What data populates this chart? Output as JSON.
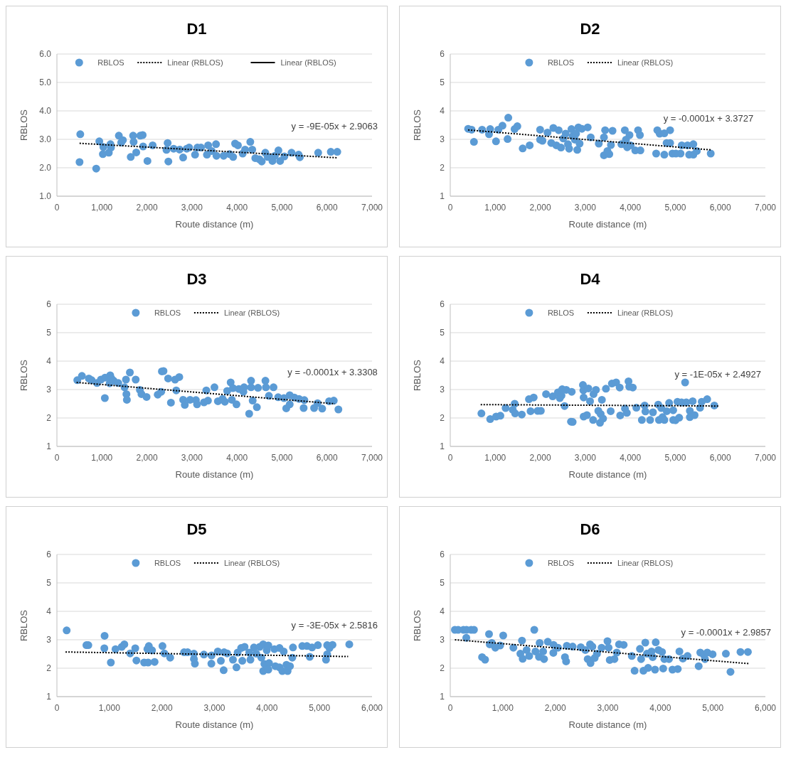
{
  "chart_data": [
    {
      "type": "scatter",
      "title": "D1",
      "xlabel": "Route distance (m)",
      "ylabel": "RBLOS",
      "xlim": [
        0,
        7000
      ],
      "xticks": [
        {
          "value": 0,
          "label": "0"
        },
        {
          "value": 1000,
          "label": "1,000"
        },
        {
          "value": 2000,
          "label": "2,000"
        },
        {
          "value": 3000,
          "label": "3,000"
        },
        {
          "value": 4000,
          "label": "4,000"
        },
        {
          "value": 5000,
          "label": "5,000"
        },
        {
          "value": 6000,
          "label": "6,000"
        },
        {
          "value": 7000,
          "label": "7,000"
        }
      ],
      "ylim": [
        1,
        6
      ],
      "yticks": [
        {
          "value": 1,
          "label": "1.0"
        },
        {
          "value": 2,
          "label": "2.0"
        },
        {
          "value": 3,
          "label": "3.0"
        },
        {
          "value": 4,
          "label": "4.0"
        },
        {
          "value": 5,
          "label": "5.0"
        },
        {
          "value": 6,
          "label": "6.0"
        }
      ],
      "grid": "y",
      "legend": "top",
      "annotations": [
        "y = -9E-05x + 2.9063"
      ],
      "series": [
        {
          "name": "RBLOS",
          "marker": "circle",
          "color": "#5b9bd5",
          "x": [
            503,
            519,
            873,
            942,
            1032,
            1021,
            1153,
            1190,
            1201,
            1376,
            1429,
            1466,
            1640,
            1693,
            1704,
            1762,
            1852,
            1905,
            1915,
            2011,
            2127,
            2460,
            2434,
            2476,
            2593,
            2725,
            2804,
            2884,
            2937,
            3069,
            3122,
            3201,
            3333,
            3360,
            3439,
            3534,
            3545,
            3704,
            3836,
            3915,
            3958,
            4021,
            4127,
            4180,
            4296,
            4339,
            4407,
            4497,
            4550,
            4630,
            4683,
            4788,
            4841,
            4921,
            4958,
            5053,
            5212,
            5370,
            5397,
            5804,
            6085,
            6228
          ],
          "values": [
            2.2,
            3.18,
            1.97,
            2.93,
            2.73,
            2.48,
            2.53,
            2.83,
            2.71,
            3.13,
            2.89,
            2.97,
            2.38,
            3.13,
            2.91,
            2.54,
            3.13,
            3.15,
            2.75,
            2.24,
            2.79,
            2.87,
            2.63,
            2.22,
            2.67,
            2.64,
            2.36,
            2.67,
            2.71,
            2.46,
            2.71,
            2.71,
            2.46,
            2.79,
            2.59,
            2.83,
            2.42,
            2.42,
            2.48,
            2.38,
            2.85,
            2.79,
            2.5,
            2.64,
            2.91,
            2.64,
            2.34,
            2.3,
            2.22,
            2.53,
            2.38,
            2.24,
            2.42,
            2.61,
            2.24,
            2.4,
            2.53,
            2.46,
            2.37,
            2.53,
            2.56,
            2.56
          ]
        },
        {
          "name": "Linear (RBLOS)",
          "type": "line",
          "color": "#000000",
          "line_style": "dotted",
          "x": [
            503,
            6228
          ],
          "values": [
            2.86,
            2.35
          ]
        },
        {
          "name": "Linear (RBLOS)",
          "type": "line",
          "color": "#000000",
          "line_style": "solid",
          "values": [
            null
          ]
        }
      ]
    },
    {
      "type": "scatter",
      "title": "D2",
      "xlabel": "Route distance (m)",
      "ylabel": "RBLOS",
      "xlim": [
        0,
        7000
      ],
      "xticks": [
        {
          "value": 0,
          "label": "0"
        },
        {
          "value": 1000,
          "label": "1,000"
        },
        {
          "value": 2000,
          "label": "2,000"
        },
        {
          "value": 3000,
          "label": "3,000"
        },
        {
          "value": 4000,
          "label": "4,000"
        },
        {
          "value": 5000,
          "label": "5,000"
        },
        {
          "value": 6000,
          "label": "6,000"
        },
        {
          "value": 7000,
          "label": "7,000"
        }
      ],
      "ylim": [
        1,
        6
      ],
      "yticks": [
        1,
        2,
        3,
        4,
        5,
        6
      ],
      "grid": "y",
      "legend": "top",
      "annotations": [
        "y = -0.0001x + 3.3727"
      ],
      "series": [
        {
          "name": "RBLOS",
          "marker": "circle",
          "color": "#5b9bd5",
          "x": [
            397,
            474,
            526,
            707,
            861,
            887,
            1016,
            1068,
            1160,
            1274,
            1289,
            1429,
            1490,
            1609,
            1764,
            1996,
            1996,
            2048,
            2160,
            2243,
            2290,
            2357,
            2408,
            2460,
            2511,
            2563,
            2615,
            2640,
            2692,
            2718,
            2769,
            2795,
            2821,
            2847,
            2873,
            2924,
            3053,
            3120,
            3300,
            3414,
            3414,
            3440,
            3491,
            3533,
            3569,
            3605,
            3801,
            3878,
            3904,
            3930,
            3982,
            4007,
            4110,
            4172,
            4213,
            4224,
            4574,
            4600,
            4652,
            4755,
            4755,
            4806,
            4884,
            4884,
            4935,
            5013,
            5116,
            5142,
            5271,
            5307,
            5400,
            5400,
            5477,
            5786
          ],
          "values": [
            3.37,
            3.34,
            2.91,
            3.34,
            3.18,
            3.36,
            2.93,
            3.34,
            3.48,
            3.01,
            3.76,
            3.36,
            3.46,
            2.68,
            2.79,
            3.34,
            2.99,
            2.95,
            3.24,
            2.87,
            3.4,
            2.79,
            3.32,
            2.71,
            3.03,
            3.2,
            2.83,
            2.67,
            3.36,
            3.11,
            2.99,
            3.2,
            2.63,
            3.42,
            2.85,
            3.37,
            3.42,
            3.07,
            2.85,
            3.07,
            2.44,
            3.32,
            2.59,
            2.48,
            2.8,
            3.3,
            2.83,
            3.32,
            2.99,
            2.72,
            3.15,
            2.79,
            2.61,
            3.32,
            3.15,
            2.61,
            2.5,
            3.32,
            3.2,
            3.21,
            2.46,
            2.87,
            3.32,
            2.87,
            2.5,
            2.5,
            2.5,
            2.79,
            2.79,
            2.46,
            2.83,
            2.46,
            2.59,
            2.5
          ]
        },
        {
          "name": "Linear (RBLOS)",
          "type": "line",
          "color": "#000000",
          "line_style": "dotted",
          "x": [
            397,
            5786
          ],
          "values": [
            3.33,
            2.63
          ]
        }
      ]
    },
    {
      "type": "scatter",
      "title": "D3",
      "xlabel": "Route distance (m)",
      "ylabel": "RBLOS",
      "xlim": [
        0,
        7000
      ],
      "xticks": [
        {
          "value": 0,
          "label": "0"
        },
        {
          "value": 1000,
          "label": "1,000"
        },
        {
          "value": 2000,
          "label": "2,000"
        },
        {
          "value": 3000,
          "label": "3,000"
        },
        {
          "value": 4000,
          "label": "4,000"
        },
        {
          "value": 5000,
          "label": "5,000"
        },
        {
          "value": 6000,
          "label": "6,000"
        },
        {
          "value": 7000,
          "label": "7,000"
        }
      ],
      "ylim": [
        1,
        6
      ],
      "yticks": [
        1,
        2,
        3,
        4,
        5,
        6
      ],
      "grid": "y",
      "legend": "top",
      "annotations": [
        "y = -0.0001x + 3.3308"
      ],
      "series": [
        {
          "name": "RBLOS",
          "marker": "circle",
          "color": "#5b9bd5",
          "x": [
            453,
            556,
            710,
            772,
            890,
            978,
            1070,
            1065,
            1184,
            1210,
            1173,
            1261,
            1364,
            1503,
            1534,
            1544,
            1554,
            1621,
            1750,
            1843,
            1879,
            1992,
            2240,
            2317,
            2332,
            2368,
            2471,
            2533,
            2625,
            2651,
            2718,
            2805,
            2841,
            2959,
            3088,
            3113,
            3268,
            3319,
            3355,
            3500,
            3577,
            3680,
            3731,
            3783,
            3860,
            3886,
            3911,
            3989,
            4040,
            4143,
            4158,
            4271,
            4313,
            4313,
            4349,
            4442,
            4467,
            4632,
            4642,
            4709,
            4812,
            4915,
            5044,
            5095,
            5172,
            5172,
            5275,
            5378,
            5481,
            5497,
            5713,
            5790,
            5893,
            6047,
            6150,
            6253
          ],
          "values": [
            3.33,
            3.48,
            3.39,
            3.33,
            3.23,
            3.35,
            3.42,
            2.7,
            3.5,
            3.39,
            3.22,
            3.31,
            3.23,
            3.08,
            3.35,
            2.84,
            2.64,
            3.6,
            3.35,
            2.99,
            2.84,
            2.74,
            2.82,
            2.92,
            3.64,
            3.65,
            3.39,
            2.54,
            3.35,
            2.97,
            3.44,
            2.64,
            2.46,
            2.64,
            2.63,
            2.48,
            2.55,
            2.97,
            2.61,
            3.08,
            2.59,
            2.67,
            2.57,
            2.95,
            3.25,
            2.64,
            3.05,
            2.48,
            3.02,
            2.92,
            3.08,
            2.15,
            3.31,
            3.08,
            2.61,
            2.38,
            3.06,
            3.31,
            3.08,
            2.78,
            3.08,
            2.73,
            2.7,
            2.34,
            2.8,
            2.48,
            2.72,
            2.67,
            2.35,
            2.63,
            2.35,
            2.52,
            2.33,
            2.59,
            2.61,
            2.3
          ]
        },
        {
          "name": "Linear (RBLOS)",
          "type": "line",
          "color": "#000000",
          "line_style": "dotted",
          "x": [
            437,
            6176
          ],
          "values": [
            3.25,
            2.5
          ]
        }
      ]
    },
    {
      "type": "scatter",
      "title": "D4",
      "xlabel": "Route distance (m)",
      "ylabel": "RBLOS",
      "xlim": [
        0,
        7000
      ],
      "xticks": [
        {
          "value": 0,
          "label": "0"
        },
        {
          "value": 1000,
          "label": "1,000"
        },
        {
          "value": 2000,
          "label": "2,000"
        },
        {
          "value": 3000,
          "label": "3,000"
        },
        {
          "value": 4000,
          "label": "4,000"
        },
        {
          "value": 5000,
          "label": "5,000"
        },
        {
          "value": 6000,
          "label": "6,000"
        },
        {
          "value": 7000,
          "label": "7,000"
        }
      ],
      "ylim": [
        1,
        6
      ],
      "yticks": [
        1,
        2,
        3,
        4,
        5,
        6
      ],
      "grid": "y",
      "legend": "top",
      "annotations": [
        "y = -1E-05x + 2.4927"
      ],
      "series": [
        {
          "name": "RBLOS",
          "marker": "circle",
          "color": "#5b9bd5",
          "x": [
            692,
            887,
            1019,
            1114,
            1230,
            1388,
            1431,
            1441,
            1589,
            1748,
            1784,
            1853,
            1943,
            2012,
            2128,
            2276,
            2392,
            2434,
            2487,
            2471,
            2540,
            2577,
            2682,
            2719,
            2698,
            2947,
            2957,
            2963,
            2963,
            3036,
            3068,
            3105,
            3173,
            3183,
            3236,
            3289,
            3326,
            3342,
            3368,
            3395,
            3458,
            3564,
            3590,
            3685,
            3764,
            3775,
            3881,
            3923,
            3960,
            3976,
            4055,
            4134,
            4256,
            4319,
            4335,
            4440,
            4503,
            4620,
            4636,
            4688,
            4715,
            4757,
            4810,
            4862,
            4952,
            4952,
            5005,
            5048,
            5085,
            5137,
            5217,
            5243,
            5322,
            5322,
            5385,
            5428,
            5549,
            5586,
            5707,
            5866
          ],
          "values": [
            2.16,
            1.96,
            2.05,
            2.08,
            2.35,
            2.29,
            2.5,
            2.16,
            2.12,
            2.66,
            2.24,
            2.72,
            2.25,
            2.25,
            2.84,
            2.76,
            2.9,
            2.7,
            3.01,
            2.79,
            2.42,
            2.99,
            1.87,
            1.86,
            2.92,
            3.16,
            2.97,
            2.72,
            2.05,
            2.1,
            3.04,
            2.59,
            1.93,
            2.84,
            2.99,
            2.25,
            1.83,
            2.14,
            2.64,
            1.98,
            3.03,
            2.24,
            3.21,
            3.25,
            3.07,
            2.09,
            2.33,
            2.18,
            3.29,
            3.1,
            3.07,
            2.36,
            1.93,
            2.44,
            2.23,
            1.93,
            2.2,
            2.47,
            1.93,
            2.35,
            2.03,
            1.93,
            2.24,
            2.53,
            1.93,
            2.27,
            1.92,
            2.57,
            2.01,
            2.55,
            3.25,
            2.55,
            2.25,
            2.03,
            2.59,
            2.1,
            2.36,
            2.57,
            2.66,
            2.44
          ]
        },
        {
          "name": "Linear (RBLOS)",
          "type": "line",
          "color": "#000000",
          "line_style": "dotted",
          "x": [
            676,
            5956
          ],
          "values": [
            2.47,
            2.42
          ]
        }
      ]
    },
    {
      "type": "scatter",
      "title": "D5",
      "xlabel": "Route distance (m)",
      "ylabel": "RBLOS",
      "xlim": [
        0,
        6000
      ],
      "xticks": [
        {
          "value": 0,
          "label": "0"
        },
        {
          "value": 1000,
          "label": "1,000"
        },
        {
          "value": 2000,
          "label": "2,000"
        },
        {
          "value": 3000,
          "label": "3,000"
        },
        {
          "value": 4000,
          "label": "4,000"
        },
        {
          "value": 5000,
          "label": "5,000"
        },
        {
          "value": 6000,
          "label": "6,000"
        }
      ],
      "ylim": [
        1,
        6
      ],
      "yticks": [
        1,
        2,
        3,
        4,
        5,
        6
      ],
      "grid": "y",
      "legend": "top",
      "annotations": [
        "y = -3E-05x + 2.5816"
      ],
      "series": [
        {
          "name": "RBLOS",
          "marker": "circle",
          "color": "#5b9bd5",
          "x": [
            186,
            562,
            598,
            908,
            903,
            1027,
            1116,
            1235,
            1284,
            1395,
            1492,
            1514,
            1661,
            1736,
            1750,
            1723,
            1811,
            1860,
            2010,
            2046,
            2157,
            2422,
            2489,
            2609,
            2609,
            2627,
            2799,
            2941,
            2945,
            3064,
            3122,
            3175,
            3184,
            3242,
            3352,
            3419,
            3441,
            3508,
            3530,
            3574,
            3663,
            3685,
            3752,
            3796,
            3862,
            3893,
            3928,
            3951,
            3928,
            3995,
            4026,
            4039,
            4026,
            4141,
            4159,
            4239,
            4239,
            4292,
            4318,
            4371,
            4393,
            4438,
            4482,
            4495,
            4672,
            4761,
            4858,
            4814,
            4969,
            5124,
            5146,
            5146,
            5190,
            5248,
            5567
          ],
          "values": [
            3.33,
            2.81,
            2.81,
            3.14,
            2.7,
            2.2,
            2.67,
            2.75,
            2.84,
            2.52,
            2.7,
            2.27,
            2.2,
            2.2,
            2.78,
            2.67,
            2.63,
            2.22,
            2.78,
            2.52,
            2.37,
            2.56,
            2.56,
            2.51,
            2.32,
            2.16,
            2.48,
            2.16,
            2.45,
            2.59,
            2.26,
            1.93,
            2.56,
            2.52,
            2.3,
            2.03,
            2.55,
            2.71,
            2.26,
            2.75,
            2.55,
            2.3,
            2.73,
            2.51,
            2.75,
            2.37,
            2.84,
            2.15,
            1.9,
            2.63,
            2.8,
            2.18,
            1.95,
            2.67,
            2.07,
            2.71,
            2.03,
            1.9,
            2.59,
            2.12,
            1.9,
            2.07,
            2.37,
            2.73,
            2.78,
            2.78,
            2.73,
            2.4,
            2.81,
            2.3,
            2.81,
            2.49,
            2.71,
            2.82,
            2.84
          ]
        },
        {
          "name": "Linear (RBLOS)",
          "type": "line",
          "color": "#000000",
          "line_style": "dotted",
          "x": [
            164,
            5545
          ],
          "values": [
            2.57,
            2.41
          ]
        }
      ]
    },
    {
      "type": "scatter",
      "title": "D6",
      "xlabel": "Route distance (m)",
      "ylabel": "RBLOS",
      "xlim": [
        0,
        6000
      ],
      "xticks": [
        {
          "value": 0,
          "label": "0"
        },
        {
          "value": 1000,
          "label": "1,000"
        },
        {
          "value": 2000,
          "label": "2,000"
        },
        {
          "value": 3000,
          "label": "3,000"
        },
        {
          "value": 4000,
          "label": "4,000"
        },
        {
          "value": 5000,
          "label": "5,000"
        },
        {
          "value": 6000,
          "label": "6,000"
        }
      ],
      "ylim": [
        1,
        6
      ],
      "yticks": [
        1,
        2,
        3,
        4,
        5,
        6
      ],
      "grid": "y",
      "legend": "top",
      "annotations": [
        "y = -0.0001x + 2.9857"
      ],
      "series": [
        {
          "name": "RBLOS",
          "marker": "circle",
          "color": "#5b9bd5",
          "x": [
            88,
            150,
            252,
            309,
            305,
            398,
            451,
            606,
            663,
            738,
            752,
            791,
            858,
            950,
            1008,
            1202,
            1335,
            1366,
            1379,
            1454,
            1503,
            1600,
            1622,
            1689,
            1702,
            1786,
            1768,
            1857,
            1963,
            1967,
            2051,
            2184,
            2206,
            2219,
            2330,
            2485,
            2573,
            2617,
            2662,
            2671,
            2706,
            2750,
            2794,
            2882,
            2993,
            3015,
            3037,
            3126,
            3170,
            3214,
            3302,
            3457,
            3510,
            3612,
            3634,
            3678,
            3714,
            3745,
            3767,
            3833,
            3855,
            3899,
            3912,
            3965,
            4032,
            4054,
            4076,
            4165,
            4231,
            4332,
            4363,
            4429,
            4518,
            4730,
            4761,
            4827,
            4850,
            4894,
            4995,
            5248,
            5336,
            5526,
            5667
          ],
          "values": [
            3.35,
            3.35,
            3.35,
            3.35,
            3.07,
            3.35,
            3.35,
            2.39,
            2.3,
            3.2,
            2.84,
            2.89,
            2.72,
            2.8,
            3.15,
            2.72,
            2.51,
            2.97,
            2.33,
            2.64,
            2.43,
            3.35,
            2.59,
            2.4,
            2.89,
            2.32,
            2.59,
            2.93,
            2.54,
            2.82,
            2.72,
            2.39,
            2.24,
            2.79,
            2.76,
            2.74,
            2.64,
            2.32,
            2.84,
            2.18,
            2.76,
            2.36,
            2.51,
            2.72,
            2.95,
            2.72,
            2.29,
            2.32,
            2.55,
            2.84,
            2.82,
            2.43,
            1.91,
            2.68,
            2.32,
            1.91,
            2.9,
            2.51,
            2.01,
            2.59,
            2.39,
            1.95,
            2.91,
            2.64,
            2.57,
            1.99,
            2.32,
            2.32,
            1.95,
            1.97,
            2.59,
            2.34,
            2.43,
            2.07,
            2.55,
            2.47,
            2.32,
            2.55,
            2.49,
            2.51,
            1.87,
            2.57,
            2.57
          ]
        },
        {
          "name": "Linear (RBLOS)",
          "type": "line",
          "color": "#000000",
          "line_style": "dotted",
          "x": [
            88,
            5690
          ],
          "values": [
            3.0,
            2.16
          ]
        }
      ]
    }
  ]
}
